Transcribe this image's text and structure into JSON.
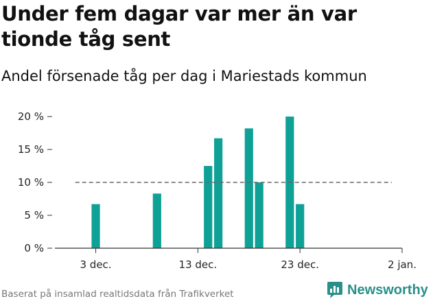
{
  "title": "Under fem dagar var mer än var tionde tåg sent",
  "subtitle": "Andel försenade tåg per dag i Mariestads kommun",
  "footer": "Baserat på insamlad realtidsdata från Trafikverket",
  "brand": {
    "name": "Newsworthy",
    "icon": "newsworthy-logo-icon"
  },
  "colors": {
    "bar": "#0fa196",
    "reference_line": "#666666",
    "axis": "#333333",
    "brand": "#2a8f88"
  },
  "chart_data": {
    "type": "bar",
    "x_start": "2021-11-29",
    "x_end": "2022-01-02",
    "x_tick_labels": [
      "3 dec.",
      "13 dec.",
      "23 dec.",
      "2 jan."
    ],
    "x_tick_values": [
      "2021-12-03",
      "2021-12-13",
      "2021-12-23",
      "2022-01-02"
    ],
    "y_tick_labels": [
      "0 %",
      "5 %",
      "10 %",
      "15 %",
      "20 %"
    ],
    "y_tick_values": [
      0,
      5,
      10,
      15,
      20
    ],
    "ylim": [
      0,
      20
    ],
    "reference_line": {
      "value": 10,
      "style": "dashed",
      "from": "2021-12-01",
      "to": "2022-01-01"
    },
    "series": [
      {
        "points": [
          {
            "date": "2021-12-03",
            "value": 6.7
          },
          {
            "date": "2021-12-09",
            "value": 8.3
          },
          {
            "date": "2021-12-14",
            "value": 12.5
          },
          {
            "date": "2021-12-15",
            "value": 16.7
          },
          {
            "date": "2021-12-18",
            "value": 18.2
          },
          {
            "date": "2021-12-19",
            "value": 10.0
          },
          {
            "date": "2021-12-22",
            "value": 20.0
          },
          {
            "date": "2021-12-23",
            "value": 6.7
          }
        ]
      }
    ]
  }
}
